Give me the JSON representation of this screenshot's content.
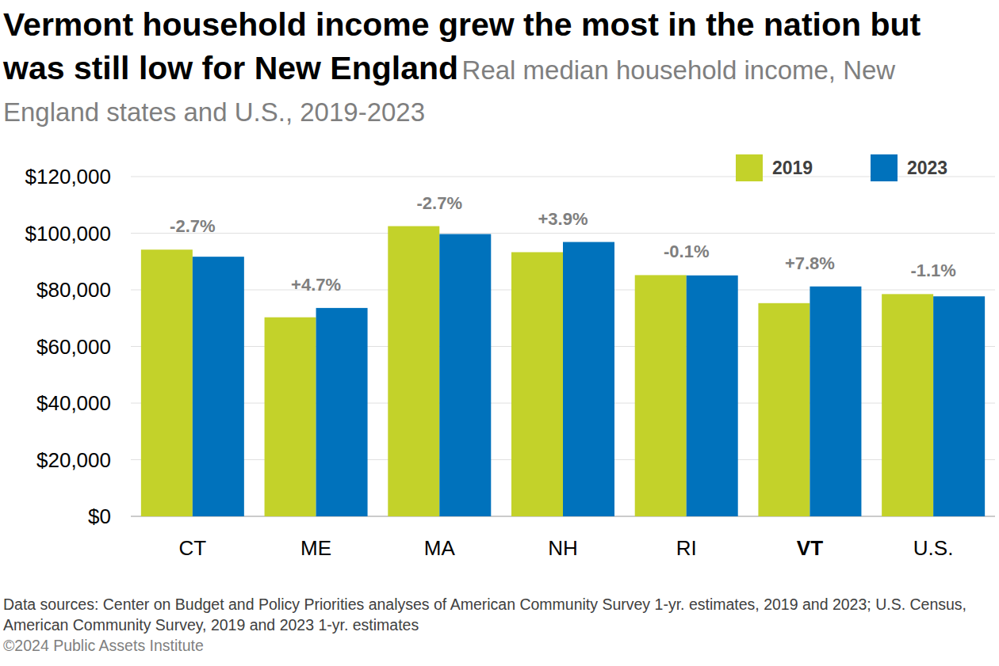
{
  "chart_data": {
    "type": "bar",
    "title": "Vermont household income grew the most in the nation but was still low for New England",
    "subtitle": "Real median household income, New England states and U.S., 2019-2023",
    "categories": [
      "CT",
      "ME",
      "MA",
      "NH",
      "RI",
      "VT",
      "U.S."
    ],
    "series": [
      {
        "name": "2019",
        "color": "#c3d22a",
        "values": [
          94200,
          70300,
          102500,
          93300,
          85200,
          75300,
          78500
        ]
      },
      {
        "name": "2023",
        "color": "#0072bc",
        "values": [
          91700,
          73600,
          99700,
          96900,
          85100,
          81200,
          77700
        ]
      }
    ],
    "annotations": [
      "-2.7%",
      "+4.7%",
      "-2.7%",
      "+3.9%",
      "-0.1%",
      "+7.8%",
      "-1.1%"
    ],
    "ylim": [
      0,
      120000
    ],
    "yticks": [
      {
        "value": 0,
        "label": "$0"
      },
      {
        "value": 20000,
        "label": "$20,000"
      },
      {
        "value": 40000,
        "label": "$40,000"
      },
      {
        "value": 60000,
        "label": "$60,000"
      },
      {
        "value": 80000,
        "label": "$80,000"
      },
      {
        "value": 100000,
        "label": "$100,000"
      },
      {
        "value": 120000,
        "label": "$120,000"
      }
    ],
    "grid": true,
    "legend": "top-right",
    "source": "Data sources: Center on Budget and Policy Priorities analyses of American Community Survey 1-yr. estimates, 2019 and 2023; U.S. Census, American Community Survey, 2019 and 2023 1-yr. estimates",
    "credit": "©2024 Public Assets Institute"
  }
}
